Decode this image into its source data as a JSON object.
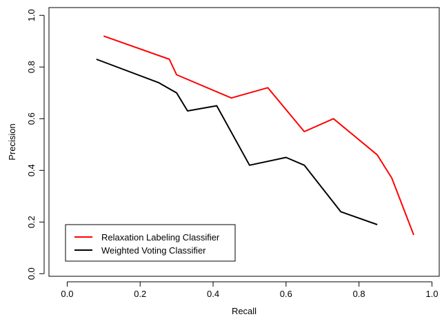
{
  "chart_data": {
    "type": "line",
    "title": "",
    "xlabel": "Recall",
    "ylabel": "Precision",
    "xlim": [
      -0.05,
      1.02
    ],
    "ylim": [
      -0.01,
      1.03
    ],
    "x_ticks": [
      0.0,
      0.2,
      0.4,
      0.6,
      0.8,
      1.0
    ],
    "x_tick_labels": [
      "0.0",
      "0.2",
      "0.4",
      "0.6",
      "0.8",
      "1.0"
    ],
    "y_ticks": [
      0.0,
      0.2,
      0.4,
      0.6,
      0.8,
      1.0
    ],
    "y_tick_labels": [
      "0.0",
      "0.2",
      "0.4",
      "0.6",
      "0.8",
      "1.0"
    ],
    "grid": false,
    "legend_position": "bottom-left",
    "series": [
      {
        "name": "Relaxation Labeling Classifier",
        "color": "#ff0000",
        "x": [
          0.1,
          0.28,
          0.3,
          0.45,
          0.55,
          0.65,
          0.73,
          0.85,
          0.89,
          0.95
        ],
        "y": [
          0.92,
          0.83,
          0.77,
          0.68,
          0.72,
          0.55,
          0.6,
          0.46,
          0.37,
          0.15
        ]
      },
      {
        "name": "Weighted Voting Classifier",
        "color": "#000000",
        "x": [
          0.08,
          0.25,
          0.3,
          0.33,
          0.41,
          0.5,
          0.6,
          0.65,
          0.75,
          0.85
        ],
        "y": [
          0.83,
          0.74,
          0.7,
          0.63,
          0.65,
          0.42,
          0.45,
          0.42,
          0.24,
          0.19
        ]
      }
    ]
  }
}
